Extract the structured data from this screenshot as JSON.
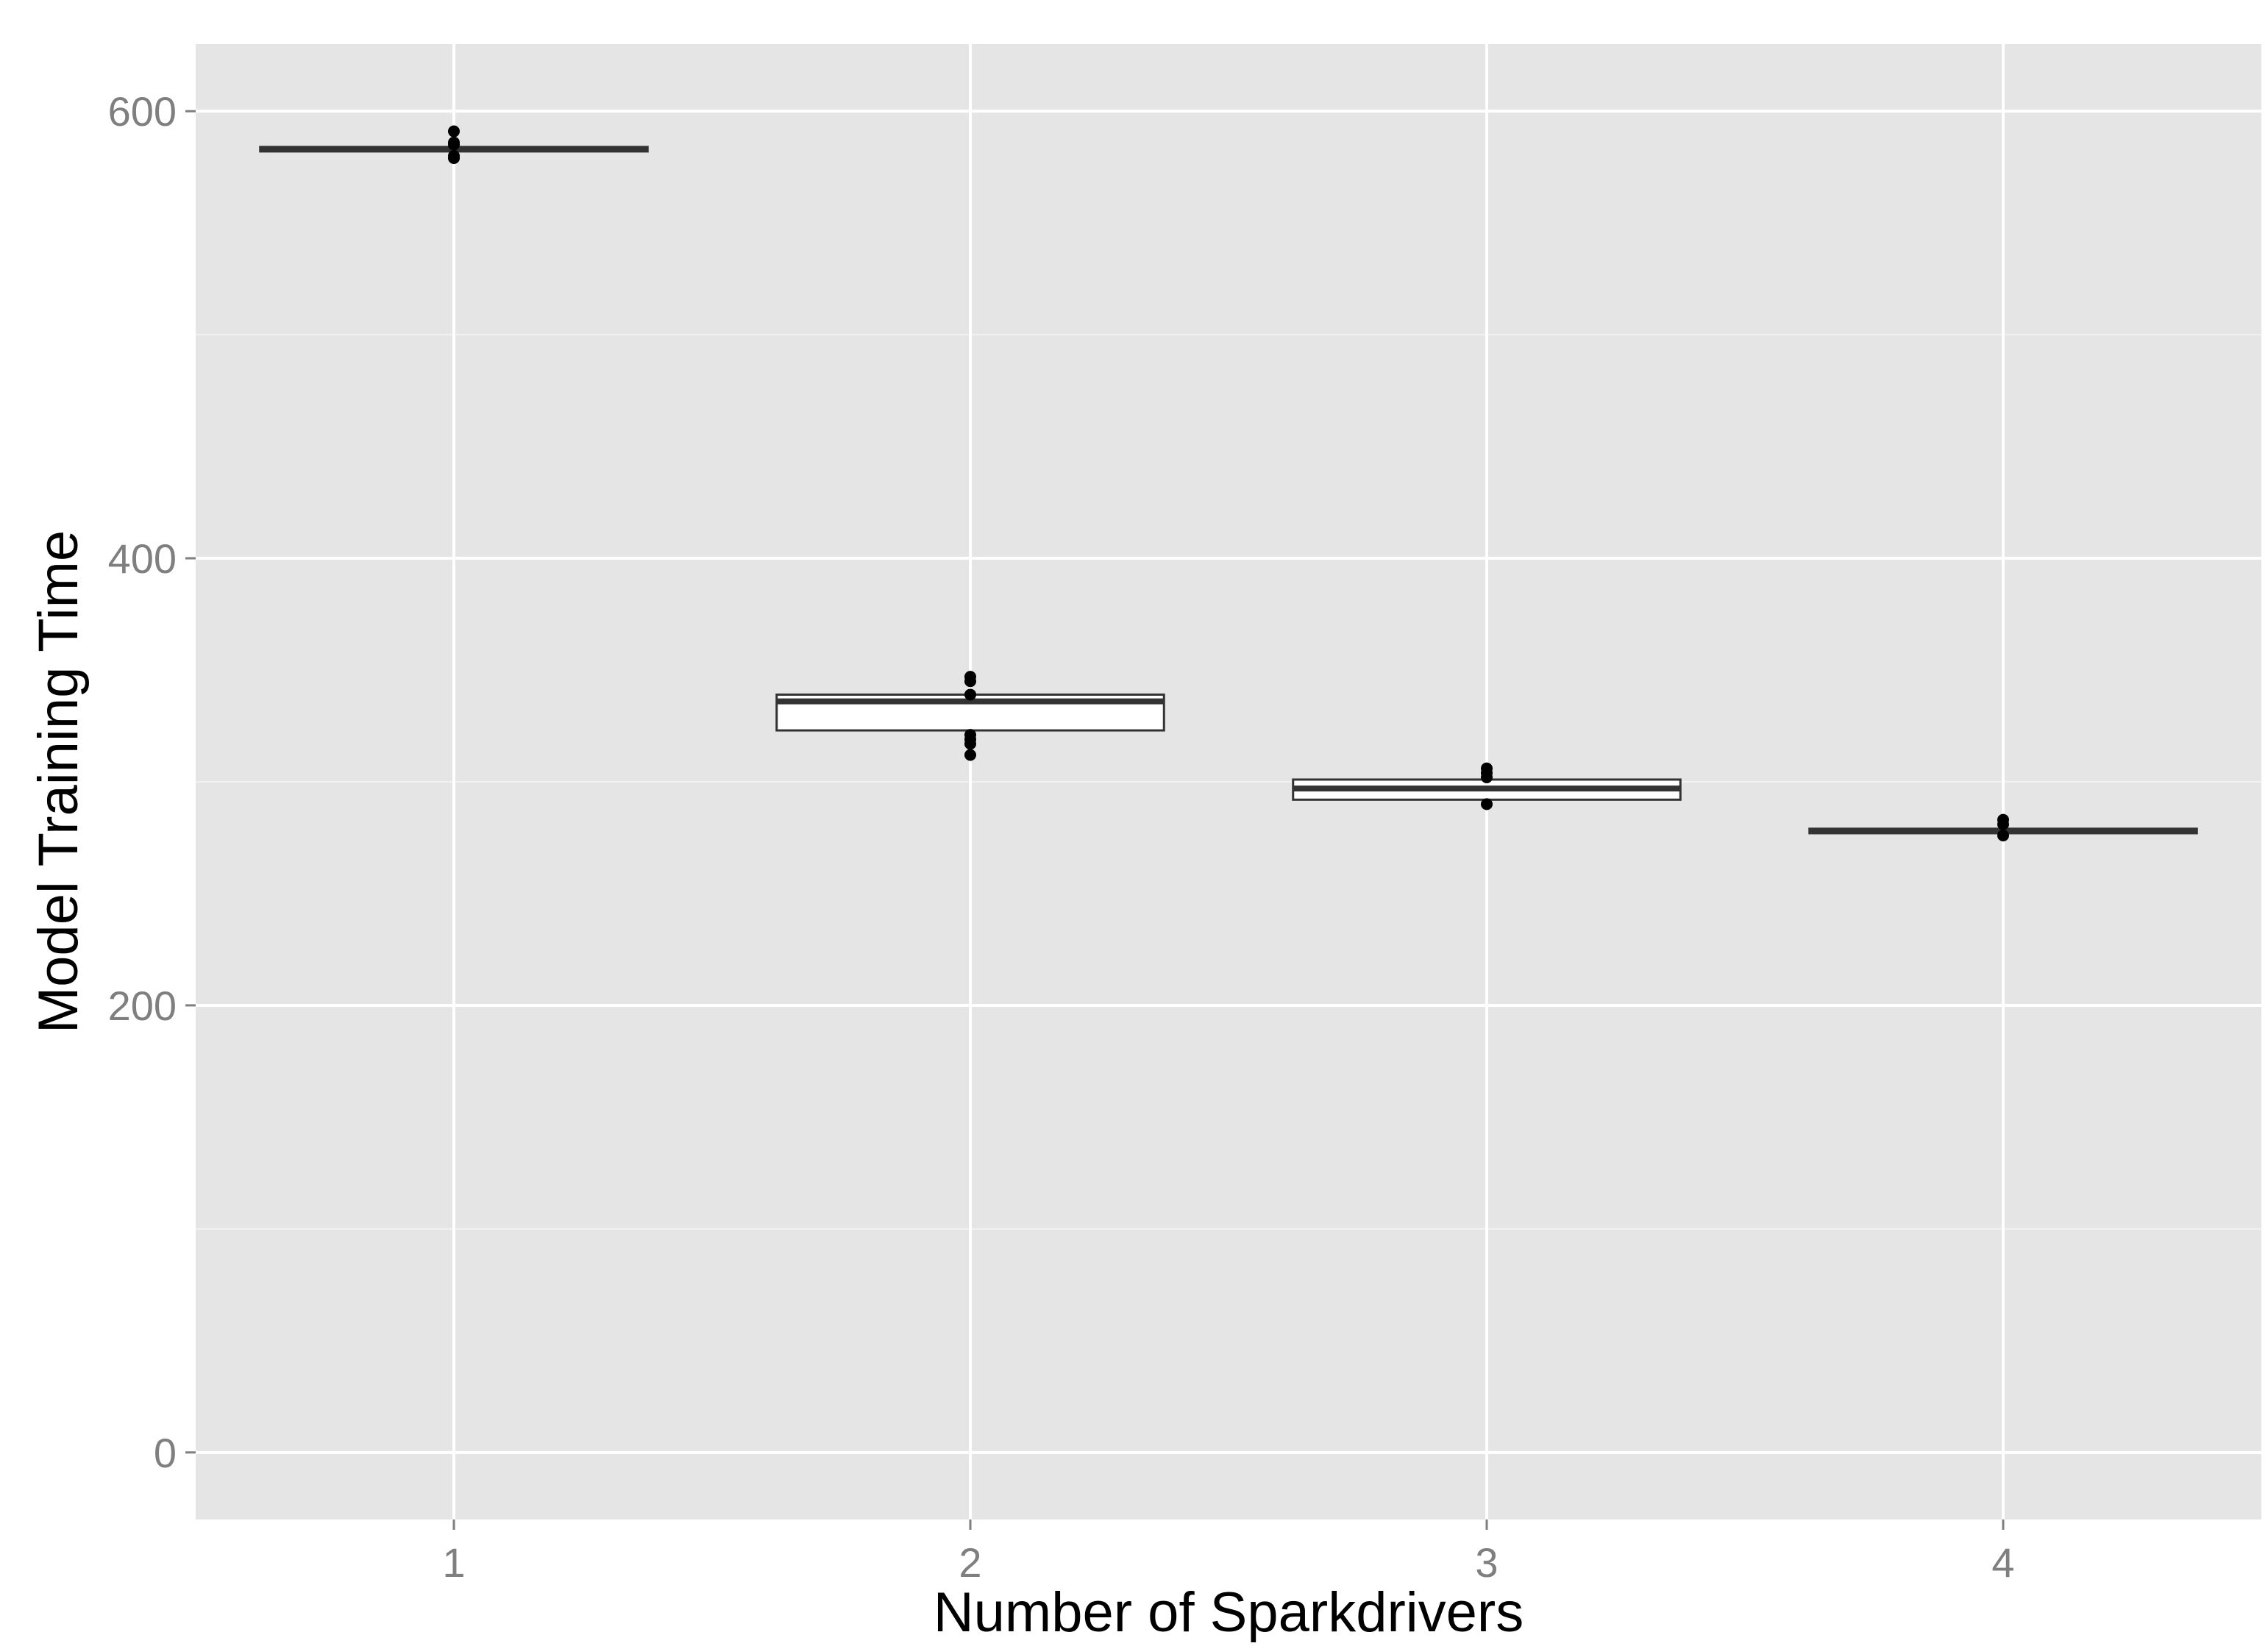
{
  "chart_data": {
    "type": "box",
    "title": "",
    "xlabel": "Number of Sparkdrivers",
    "ylabel": "Model Training Time",
    "categories": [
      "1",
      "2",
      "3",
      "4"
    ],
    "ylim": [
      -30,
      630
    ],
    "yticks": [
      0,
      200,
      400,
      600
    ],
    "yticks_minor": [
      100,
      300,
      500
    ],
    "grid": true,
    "legend": "none",
    "boxes": [
      {
        "category": "1",
        "q1": 582,
        "median": 583,
        "q3": 584,
        "whisker_low": 581,
        "whisker_high": 585,
        "outliers": [
          579,
          580,
          585,
          586,
          591
        ]
      },
      {
        "category": "2",
        "q1": 323,
        "median": 336,
        "q3": 339,
        "whisker_low": 323,
        "whisker_high": 339,
        "outliers": [
          312,
          317,
          319,
          321,
          339,
          345,
          347
        ]
      },
      {
        "category": "3",
        "q1": 292,
        "median": 297,
        "q3": 301,
        "whisker_low": 292,
        "whisker_high": 301,
        "outliers": [
          290,
          302,
          304,
          306
        ]
      },
      {
        "category": "4",
        "q1": 277,
        "median": 278,
        "q3": 279,
        "whisker_low": 277,
        "whisker_high": 279,
        "outliers": [
          276,
          281,
          283
        ]
      }
    ],
    "colors": {
      "panel_bg": "#e5e5e5",
      "grid_major": "#ffffff",
      "grid_minor": "#f2f2f2",
      "box_fill": "#ffffff",
      "box_stroke": "#333333",
      "median": "#333333",
      "outlier": "#000000",
      "tick_label": "#7f7f7f",
      "axis_title": "#000000"
    }
  }
}
